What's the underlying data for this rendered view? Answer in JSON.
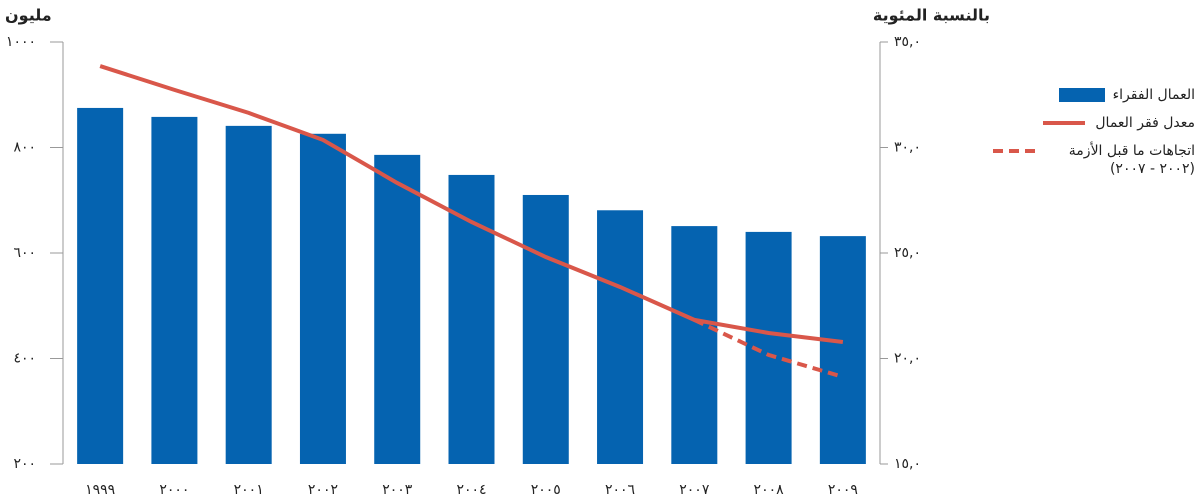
{
  "chart_data": {
    "type": "bar-line",
    "y_label": "مليون",
    "y2_label": "بالنسبة المئوية",
    "categories": [
      "١٩٩٩",
      "٢٠٠٠",
      "٢٠٠١",
      "٢٠٠٢",
      "٢٠٠٣",
      "٢٠٠٤",
      "٢٠٠٥",
      "٢٠٠٦",
      "٢٠٠٧",
      "٢٠٠٨",
      "٢٠٠٩"
    ],
    "ylim": [
      200,
      1000
    ],
    "yticks": [
      {
        "value": 200,
        "label": "٢٠٠"
      },
      {
        "value": 400,
        "label": "٤٠٠"
      },
      {
        "value": 600,
        "label": "٦٠٠"
      },
      {
        "value": 800,
        "label": "٨٠٠"
      },
      {
        "value": 1000,
        "label": "١٠٠٠"
      }
    ],
    "y2lim": [
      15,
      35
    ],
    "y2ticks": [
      {
        "value": 15,
        "label": "١٥,٠"
      },
      {
        "value": 20,
        "label": "٢٠,٠"
      },
      {
        "value": 25,
        "label": "٢٥,٠"
      },
      {
        "value": 30,
        "label": "٣٠,٠"
      },
      {
        "value": 35,
        "label": "٣٥,٠"
      }
    ],
    "series": [
      {
        "name": "العمال الفقراء",
        "type": "bar",
        "color": "#0563b0",
        "values": [
          875,
          858,
          841,
          826,
          786,
          748,
          710,
          681,
          651,
          640,
          632
        ]
      },
      {
        "name": "معدل فقر العمال",
        "type": "line",
        "axis": "y2",
        "color": "#d9574a",
        "values": [
          33.86,
          32.73,
          31.64,
          30.36,
          28.32,
          26.47,
          24.81,
          23.39,
          21.83,
          21.21,
          20.78
        ]
      },
      {
        "name": "اتجاهات ما قبل الأزمة (٢٠٠٢ - ٢٠٠٧)",
        "type": "line",
        "dashed": true,
        "axis": "y2",
        "color": "#d9574a",
        "values": [
          null,
          null,
          null,
          null,
          null,
          null,
          null,
          null,
          21.83,
          20.17,
          19.13
        ]
      }
    ]
  }
}
